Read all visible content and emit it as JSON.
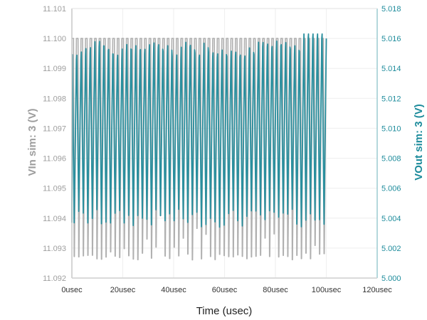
{
  "chart_data": {
    "type": "line",
    "title": "",
    "xlabel": "Time (usec)",
    "ylabel_left": "VIn sim: 3 (V)",
    "ylabel_right": "VOut sim: 3 (V)",
    "x_ticks": [
      "0usec",
      "20usec",
      "40usec",
      "60usec",
      "80usec",
      "100usec",
      "120usec"
    ],
    "x_tick_values": [
      0,
      20,
      40,
      60,
      80,
      100,
      120
    ],
    "xlim": [
      0,
      120
    ],
    "y_left_ticks": [
      "11.101",
      "11.100",
      "11.099",
      "11.098",
      "11.097",
      "11.096",
      "11.095",
      "11.094",
      "11.093",
      "11.092"
    ],
    "ylim_left": [
      11.092,
      11.101
    ],
    "y_right_ticks": [
      "5.018",
      "5.016",
      "5.014",
      "5.012",
      "5.010",
      "5.008",
      "5.006",
      "5.004",
      "5.002",
      "5.000"
    ],
    "ylim_right": [
      5.0,
      5.018
    ],
    "grid": true,
    "legend": "none",
    "colors": {
      "vin": "#b0b0b0",
      "vout": "#2a8f9e",
      "left_axis": "#c8c8c8",
      "right_axis": "#9ccbd2",
      "grid": "#f0f0f0"
    },
    "series": [
      {
        "name": "VIn sim: 3",
        "axis": "left",
        "description": "Square-like ripple oscillating ~56 cycles over 0-100 usec; peaks at 11.100 V, troughs between ~11.0926 and ~11.094 V",
        "x_range": [
          0,
          100
        ],
        "cycles": 56,
        "peak": 11.1,
        "trough_min": 11.0926,
        "trough_max": 11.0942
      },
      {
        "name": "VOut sim: 3",
        "axis": "right",
        "description": "Ripple oscillating in phase with VIn; peaks ~5.0150-5.0158 V rising to ~5.0163 V near 95-100 usec, troughs ~5.0034-5.0045 V",
        "x_range": [
          0,
          100
        ],
        "cycles": 56,
        "peak_min": 5.0148,
        "peak_max": 5.0163,
        "trough_min": 5.0034,
        "trough_max": 5.0046
      }
    ]
  }
}
